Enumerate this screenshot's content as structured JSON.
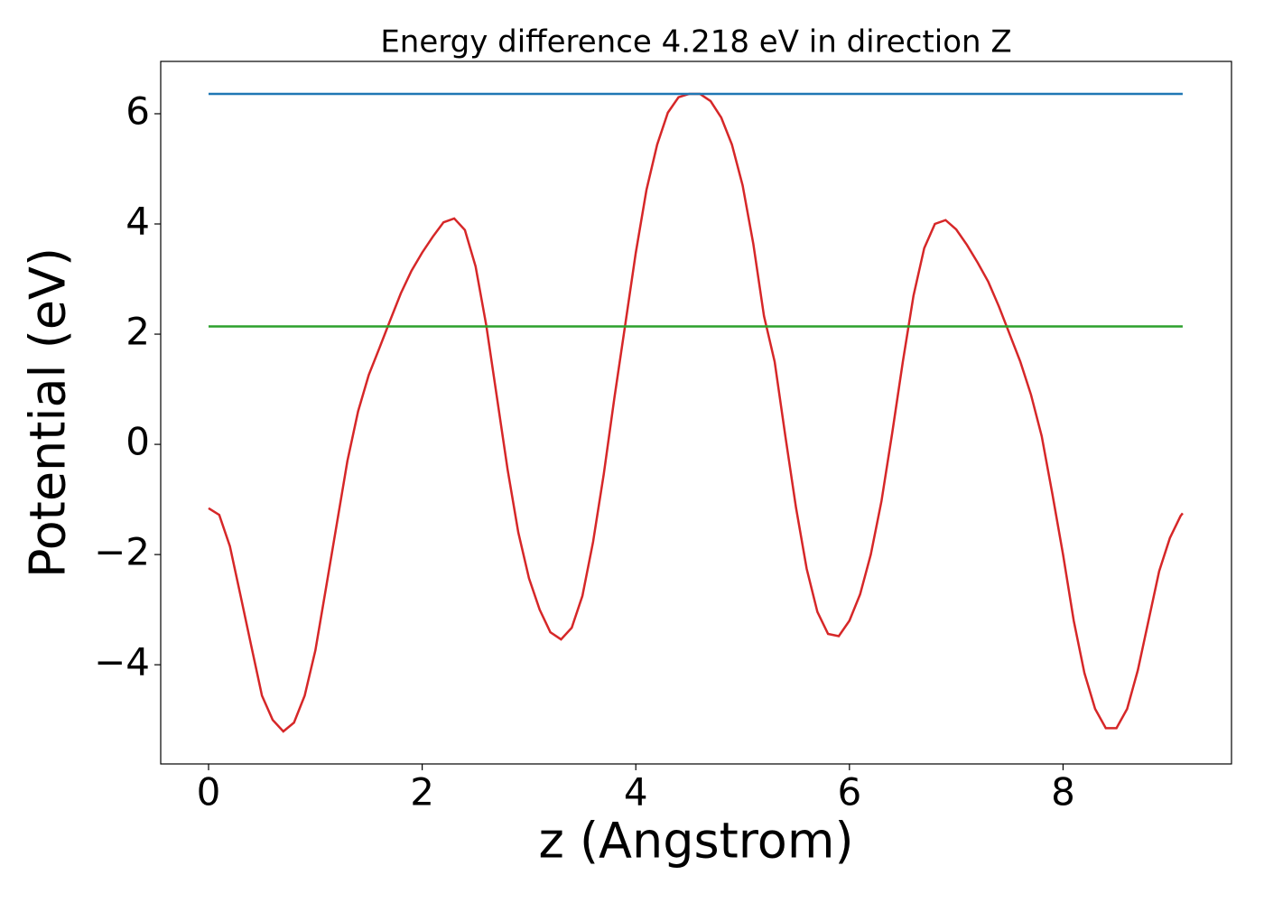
{
  "chart_data": {
    "type": "line",
    "title": "Energy difference 4.218 eV in direction Z",
    "xlabel": "z (Angstrom)",
    "ylabel": "Potential (eV)",
    "xlim": [
      -0.448,
      9.577
    ],
    "ylim": [
      -5.8,
      6.95
    ],
    "xticks": [
      0,
      2,
      4,
      6,
      8
    ],
    "yticks": [
      {
        "value": -4,
        "label": "−4"
      },
      {
        "value": -2,
        "label": "−2"
      },
      0,
      2,
      4,
      6
    ],
    "series": [
      {
        "color": "#d62728",
        "x": [
          0,
          0.1,
          0.2,
          0.3,
          0.4,
          0.5,
          0.6,
          0.7,
          0.8,
          0.9,
          1.0,
          1.1,
          1.2,
          1.3,
          1.4,
          1.5,
          1.6,
          1.7,
          1.8,
          1.9,
          2.0,
          2.1,
          2.2,
          2.3,
          2.4,
          2.5,
          2.6,
          2.7,
          2.8,
          2.9,
          3.0,
          3.1,
          3.2,
          3.3,
          3.4,
          3.5,
          3.6,
          3.7,
          3.8,
          3.9,
          4.0,
          4.1,
          4.2,
          4.3,
          4.4,
          4.5,
          4.6,
          4.7,
          4.8,
          4.9,
          5.0,
          5.1,
          5.2,
          5.3,
          5.4,
          5.5,
          5.6,
          5.7,
          5.8,
          5.9,
          6.0,
          6.1,
          6.2,
          6.3,
          6.4,
          6.5,
          6.6,
          6.7,
          6.8,
          6.9,
          7.0,
          7.1,
          7.2,
          7.3,
          7.4,
          7.5,
          7.6,
          7.7,
          7.8,
          7.9,
          8.0,
          8.1,
          8.2,
          8.3,
          8.4,
          8.5,
          8.6,
          8.7,
          8.8,
          8.9,
          9.0,
          9.1,
          9.12
        ],
        "values": [
          -1.16,
          -1.28,
          -1.85,
          -2.75,
          -3.66,
          -4.56,
          -5.0,
          -5.21,
          -5.05,
          -4.56,
          -3.74,
          -2.6,
          -1.45,
          -0.3,
          0.6,
          1.26,
          1.75,
          2.25,
          2.74,
          3.15,
          3.48,
          3.77,
          4.03,
          4.1,
          3.89,
          3.23,
          2.16,
          0.85,
          -0.46,
          -1.6,
          -2.43,
          -3.0,
          -3.41,
          -3.54,
          -3.33,
          -2.75,
          -1.77,
          -0.54,
          0.85,
          2.16,
          3.48,
          4.62,
          5.44,
          6.02,
          6.3,
          6.36,
          6.36,
          6.23,
          5.93,
          5.44,
          4.7,
          3.64,
          2.33,
          1.5,
          0.15,
          -1.15,
          -2.26,
          -3.04,
          -3.44,
          -3.48,
          -3.2,
          -2.72,
          -2.0,
          -1.03,
          0.2,
          1.5,
          2.7,
          3.56,
          4.0,
          4.07,
          3.9,
          3.62,
          3.3,
          2.95,
          2.5,
          2.0,
          1.5,
          0.9,
          0.15,
          -0.9,
          -2.0,
          -3.2,
          -4.15,
          -4.8,
          -5.15,
          -5.15,
          -4.8,
          -4.1,
          -3.2,
          -2.3,
          -1.7,
          -1.3,
          -1.25
        ]
      },
      {
        "color": "#1f77b4",
        "x": [
          0,
          9.12
        ],
        "values": [
          6.36,
          6.36
        ]
      },
      {
        "color": "#2ca02c",
        "x": [
          0,
          9.12
        ],
        "values": [
          2.14,
          2.14
        ]
      }
    ]
  }
}
